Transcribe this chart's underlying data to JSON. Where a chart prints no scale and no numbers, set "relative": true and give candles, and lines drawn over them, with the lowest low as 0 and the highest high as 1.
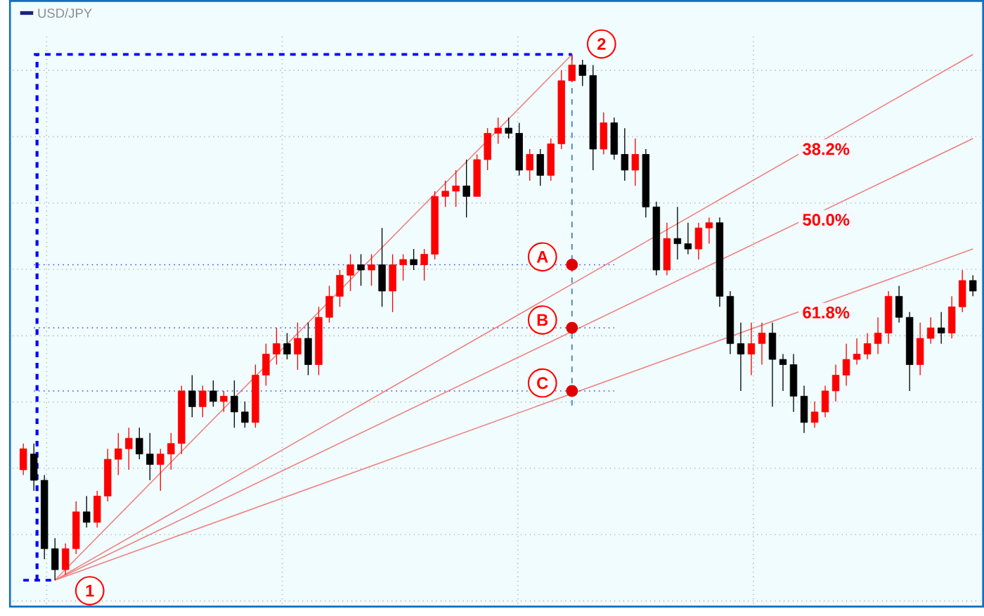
{
  "chart_data": {
    "type": "candlestick",
    "relative": true,
    "grid": true,
    "legend": "top left",
    "categories": [
      null,
      null,
      null,
      null,
      null,
      null,
      null,
      null,
      null,
      null,
      null,
      null,
      null,
      null,
      null,
      null,
      null,
      null,
      null,
      null,
      null,
      null,
      null,
      null,
      null,
      null,
      null,
      null,
      null,
      null,
      null,
      null,
      null,
      null,
      null,
      null,
      null,
      null,
      null,
      null,
      null,
      null,
      null,
      null,
      null,
      null,
      null,
      null,
      null,
      null,
      null,
      null,
      null,
      null,
      null,
      null,
      null,
      null,
      null,
      null,
      null,
      null,
      null,
      null,
      null,
      null,
      null,
      null,
      null,
      null,
      null,
      null,
      null,
      null,
      null,
      null,
      null,
      null,
      null,
      null,
      null,
      null,
      null,
      null,
      null,
      null,
      null,
      null,
      null,
      null,
      null
    ],
    "series": [
      {
        "name": "USD/JPY",
        "color": "#1a237e",
        "colors": [
          "#ff0000",
          "#000000",
          "#000000",
          "#000000",
          "#ff0000",
          "#ff0000",
          "#000000",
          "#ff0000",
          "#ff0000",
          "#ff0000",
          "#ff0000",
          "#000000",
          "#000000",
          "#ff0000",
          "#ff0000",
          "#ff0000",
          "#000000",
          "#ff0000",
          "#000000",
          "#ff0000",
          "#000000",
          "#000000",
          "#ff0000",
          "#ff0000",
          "#ff0000",
          "#000000",
          "#ff0000",
          "#000000",
          "#ff0000",
          "#ff0000",
          "#ff0000",
          "#ff0000",
          "#000000",
          "#ff0000",
          "#000000",
          "#ff0000",
          "#ff0000",
          "#000000",
          "#ff0000",
          "#ff0000",
          "#ff0000",
          "#ff0000",
          "#000000",
          "#ff0000",
          "#ff0000",
          "#ff0000",
          "#000000",
          "#000000",
          "#ff0000",
          "#000000",
          "#ff0000",
          "#ff0000",
          "#ff0000",
          "#000000",
          "#000000",
          "#ff0000",
          "#000000",
          "#000000",
          "#ff0000",
          "#000000",
          "#000000",
          "#ff0000",
          "#000000",
          "#000000",
          "#ff0000",
          "#ff0000",
          "#000000",
          "#000000",
          "#000000",
          "#ff0000",
          "#ff0000",
          "#000000",
          "#000000",
          "#000000",
          "#000000",
          "#ff0000",
          "#ff0000",
          "#ff0000",
          "#ff0000",
          "#ff0000",
          "#ff0000",
          "#ff0000",
          "#ff0000",
          "#000000",
          "#000000",
          "#ff0000",
          "#ff0000",
          "#000000",
          "#ff0000",
          "#ff0000",
          "#000000"
        ],
        "ohlc": [
          [
            0.21,
            0.26,
            0.2,
            0.25
          ],
          [
            0.24,
            0.26,
            0.17,
            0.19
          ],
          [
            0.19,
            0.2,
            0.04,
            0.06
          ],
          [
            0.06,
            0.08,
            0.0,
            0.02
          ],
          [
            0.02,
            0.07,
            0.01,
            0.06
          ],
          [
            0.06,
            0.15,
            0.05,
            0.13
          ],
          [
            0.13,
            0.16,
            0.1,
            0.11
          ],
          [
            0.11,
            0.17,
            0.1,
            0.16
          ],
          [
            0.16,
            0.25,
            0.15,
            0.23
          ],
          [
            0.23,
            0.28,
            0.2,
            0.25
          ],
          [
            0.25,
            0.29,
            0.21,
            0.27
          ],
          [
            0.27,
            0.29,
            0.23,
            0.24
          ],
          [
            0.24,
            0.28,
            0.19,
            0.22
          ],
          [
            0.22,
            0.25,
            0.17,
            0.24
          ],
          [
            0.24,
            0.28,
            0.21,
            0.26
          ],
          [
            0.26,
            0.37,
            0.24,
            0.36
          ],
          [
            0.36,
            0.39,
            0.31,
            0.33
          ],
          [
            0.33,
            0.37,
            0.31,
            0.36
          ],
          [
            0.36,
            0.38,
            0.33,
            0.34
          ],
          [
            0.34,
            0.36,
            0.32,
            0.35
          ],
          [
            0.35,
            0.38,
            0.29,
            0.32
          ],
          [
            0.32,
            0.34,
            0.29,
            0.3
          ],
          [
            0.3,
            0.41,
            0.29,
            0.39
          ],
          [
            0.39,
            0.45,
            0.37,
            0.43
          ],
          [
            0.43,
            0.48,
            0.41,
            0.45
          ],
          [
            0.45,
            0.47,
            0.42,
            0.43
          ],
          [
            0.43,
            0.49,
            0.4,
            0.46
          ],
          [
            0.46,
            0.49,
            0.39,
            0.41
          ],
          [
            0.41,
            0.52,
            0.39,
            0.5
          ],
          [
            0.5,
            0.56,
            0.49,
            0.54
          ],
          [
            0.54,
            0.59,
            0.52,
            0.58
          ],
          [
            0.58,
            0.62,
            0.55,
            0.6
          ],
          [
            0.6,
            0.62,
            0.56,
            0.59
          ],
          [
            0.59,
            0.62,
            0.56,
            0.6
          ],
          [
            0.6,
            0.67,
            0.52,
            0.55
          ],
          [
            0.55,
            0.62,
            0.51,
            0.6
          ],
          [
            0.6,
            0.62,
            0.57,
            0.61
          ],
          [
            0.61,
            0.63,
            0.59,
            0.6
          ],
          [
            0.6,
            0.63,
            0.57,
            0.62
          ],
          [
            0.62,
            0.74,
            0.61,
            0.73
          ],
          [
            0.73,
            0.76,
            0.71,
            0.74
          ],
          [
            0.74,
            0.78,
            0.71,
            0.75
          ],
          [
            0.75,
            0.8,
            0.69,
            0.73
          ],
          [
            0.73,
            0.81,
            0.73,
            0.8
          ],
          [
            0.8,
            0.86,
            0.78,
            0.85
          ],
          [
            0.85,
            0.88,
            0.83,
            0.86
          ],
          [
            0.86,
            0.88,
            0.84,
            0.85
          ],
          [
            0.85,
            0.87,
            0.77,
            0.78
          ],
          [
            0.78,
            0.82,
            0.76,
            0.81
          ],
          [
            0.81,
            0.82,
            0.75,
            0.77
          ],
          [
            0.77,
            0.84,
            0.76,
            0.83
          ],
          [
            0.83,
            0.97,
            0.82,
            0.95
          ],
          [
            0.95,
            1.0,
            0.95,
            0.98
          ],
          [
            0.98,
            0.99,
            0.94,
            0.96
          ],
          [
            0.96,
            0.98,
            0.78,
            0.82
          ],
          [
            0.82,
            0.89,
            0.81,
            0.87
          ],
          [
            0.87,
            0.88,
            0.8,
            0.81
          ],
          [
            0.81,
            0.86,
            0.76,
            0.78
          ],
          [
            0.78,
            0.84,
            0.75,
            0.81
          ],
          [
            0.81,
            0.82,
            0.69,
            0.71
          ],
          [
            0.71,
            0.72,
            0.58,
            0.59
          ],
          [
            0.59,
            0.68,
            0.58,
            0.65
          ],
          [
            0.65,
            0.71,
            0.61,
            0.64
          ],
          [
            0.64,
            0.68,
            0.62,
            0.63
          ],
          [
            0.63,
            0.68,
            0.61,
            0.67
          ],
          [
            0.67,
            0.69,
            0.64,
            0.68
          ],
          [
            0.68,
            0.69,
            0.52,
            0.54
          ],
          [
            0.54,
            0.55,
            0.43,
            0.45
          ],
          [
            0.45,
            0.49,
            0.36,
            0.43
          ],
          [
            0.43,
            0.49,
            0.39,
            0.45
          ],
          [
            0.45,
            0.49,
            0.41,
            0.47
          ],
          [
            0.47,
            0.49,
            0.33,
            0.42
          ],
          [
            0.42,
            0.43,
            0.36,
            0.41
          ],
          [
            0.41,
            0.43,
            0.32,
            0.35
          ],
          [
            0.35,
            0.37,
            0.28,
            0.3
          ],
          [
            0.3,
            0.34,
            0.29,
            0.32
          ],
          [
            0.32,
            0.37,
            0.31,
            0.36
          ],
          [
            0.36,
            0.41,
            0.34,
            0.39
          ],
          [
            0.39,
            0.45,
            0.37,
            0.42
          ],
          [
            0.42,
            0.46,
            0.41,
            0.43
          ],
          [
            0.43,
            0.47,
            0.42,
            0.45
          ],
          [
            0.45,
            0.5,
            0.43,
            0.47
          ],
          [
            0.47,
            0.55,
            0.45,
            0.54
          ],
          [
            0.54,
            0.56,
            0.49,
            0.5
          ],
          [
            0.5,
            0.51,
            0.36,
            0.41
          ],
          [
            0.41,
            0.49,
            0.39,
            0.46
          ],
          [
            0.46,
            0.5,
            0.45,
            0.48
          ],
          [
            0.48,
            0.51,
            0.45,
            0.47
          ],
          [
            0.47,
            0.54,
            0.46,
            0.52
          ],
          [
            0.52,
            0.59,
            0.51,
            0.57
          ],
          [
            0.57,
            0.58,
            0.54,
            0.55
          ]
        ]
      },
      {
        "type": "line",
        "color": "#f08080",
        "line_style": "solid",
        "values": [
          null,
          null,
          null,
          0,
          null,
          null,
          null,
          null,
          null,
          null,
          null,
          null,
          null,
          null,
          null,
          null,
          null,
          null,
          null,
          null,
          null,
          null,
          null,
          null,
          null,
          null,
          null,
          null,
          null,
          null,
          null,
          null,
          null,
          null,
          null,
          null,
          null,
          null,
          null,
          null,
          null,
          null,
          null,
          null,
          null,
          null,
          null,
          null,
          null,
          null,
          null,
          null,
          1,
          null,
          null,
          null,
          null,
          null,
          null,
          null,
          null,
          null,
          null,
          null,
          null,
          null,
          null,
          null,
          null,
          null,
          null,
          null,
          null,
          null,
          null,
          null,
          null,
          null,
          null,
          null,
          null,
          null,
          null,
          null,
          null,
          null,
          null,
          null,
          null,
          null,
          null
        ]
      },
      {
        "type": "line",
        "color": "#f08080",
        "line_style": "solid",
        "values": [
          null,
          null,
          null,
          0,
          null,
          null,
          null,
          null,
          null,
          null,
          null,
          null,
          null,
          null,
          null,
          null,
          null,
          null,
          null,
          null,
          null,
          null,
          null,
          null,
          null,
          null,
          null,
          null,
          null,
          null,
          null,
          null,
          null,
          null,
          null,
          null,
          null,
          null,
          null,
          null,
          null,
          null,
          null,
          null,
          null,
          null,
          null,
          null,
          null,
          null,
          null,
          null,
          null,
          null,
          null,
          null,
          null,
          null,
          null,
          null,
          null,
          null,
          null,
          null,
          null,
          null,
          null,
          null,
          null,
          null,
          null,
          null,
          null,
          null,
          null,
          null,
          null,
          null,
          null,
          null,
          null,
          null,
          null,
          null,
          null,
          null,
          null,
          null,
          null,
          null,
          1.0
        ]
      },
      {
        "type": "line",
        "color": "#f08080",
        "line_style": "solid",
        "values": [
          null,
          null,
          null,
          0,
          null,
          null,
          null,
          null,
          null,
          null,
          null,
          null,
          null,
          null,
          null,
          null,
          null,
          null,
          null,
          null,
          null,
          null,
          null,
          null,
          null,
          null,
          null,
          null,
          null,
          null,
          null,
          null,
          null,
          null,
          null,
          null,
          null,
          null,
          null,
          null,
          null,
          null,
          null,
          null,
          null,
          null,
          null,
          null,
          null,
          null,
          null,
          null,
          null,
          null,
          null,
          null,
          null,
          null,
          null,
          null,
          null,
          null,
          null,
          null,
          null,
          null,
          null,
          null,
          null,
          null,
          null,
          null,
          null,
          null,
          null,
          null,
          null,
          null,
          null,
          null,
          null,
          null,
          null,
          null,
          null,
          null,
          null,
          null,
          null,
          null,
          0.84
        ]
      },
      {
        "type": "line",
        "color": "#f08080",
        "line_style": "solid",
        "values": [
          null,
          null,
          null,
          0,
          null,
          null,
          null,
          null,
          null,
          null,
          null,
          null,
          null,
          null,
          null,
          null,
          null,
          null,
          null,
          null,
          null,
          null,
          null,
          null,
          null,
          null,
          null,
          null,
          null,
          null,
          null,
          null,
          null,
          null,
          null,
          null,
          null,
          null,
          null,
          null,
          null,
          null,
          null,
          null,
          null,
          null,
          null,
          null,
          null,
          null,
          null,
          null,
          null,
          null,
          null,
          null,
          null,
          null,
          null,
          null,
          null,
          null,
          null,
          null,
          null,
          null,
          null,
          null,
          null,
          null,
          null,
          null,
          null,
          null,
          null,
          null,
          null,
          null,
          null,
          null,
          null,
          null,
          null,
          null,
          null,
          null,
          null,
          null,
          null,
          null,
          0.63
        ]
      },
      {
        "type": "line",
        "color": "#0000ff",
        "line_style": "dashed",
        "values": [
          null,
          1,
          null,
          null,
          null,
          null,
          null,
          null,
          null,
          null,
          null,
          null,
          null,
          null,
          null,
          null,
          null,
          null,
          null,
          null,
          null,
          null,
          null,
          null,
          null,
          null,
          null,
          null,
          null,
          null,
          null,
          null,
          null,
          null,
          null,
          null,
          null,
          null,
          null,
          null,
          null,
          null,
          null,
          null,
          null,
          null,
          null,
          null,
          null,
          null,
          null,
          null,
          1,
          null,
          null,
          null,
          null,
          null,
          null,
          null,
          null,
          null,
          null,
          null,
          null,
          null,
          null,
          null,
          null,
          null,
          null,
          null,
          null,
          null,
          null,
          null,
          null,
          null,
          null,
          null,
          null,
          null,
          null,
          null,
          null,
          null,
          null,
          null,
          null,
          null,
          null
        ]
      },
      {
        "type": "line",
        "color": "#0000ff",
        "line_style": "dashed",
        "values": [
          0,
          null,
          null,
          0,
          null,
          null,
          null,
          null,
          null,
          null,
          null,
          null,
          null,
          null,
          null,
          null,
          null,
          null,
          null,
          null,
          null,
          null,
          null,
          null,
          null,
          null,
          null,
          null,
          null,
          null,
          null,
          null,
          null,
          null,
          null,
          null,
          null,
          null,
          null,
          null,
          null,
          null,
          null,
          null,
          null,
          null,
          null,
          null,
          null,
          null,
          null,
          null,
          null,
          null,
          null,
          null,
          null,
          null,
          null,
          null,
          null,
          null,
          null,
          null,
          null,
          null,
          null,
          null,
          null,
          null,
          null,
          null,
          null,
          null,
          null,
          null,
          null,
          null,
          null,
          null,
          null,
          null,
          null,
          null,
          null,
          null,
          null,
          null,
          null,
          null,
          null
        ]
      },
      {
        "type": "line",
        "color": "#4040ff",
        "line_style": "dotted",
        "values": [
          null,
          0.6,
          null,
          null,
          null,
          null,
          null,
          null,
          null,
          null,
          null,
          null,
          null,
          null,
          null,
          null,
          null,
          null,
          null,
          null,
          null,
          null,
          null,
          null,
          null,
          null,
          null,
          null,
          null,
          null,
          null,
          null,
          null,
          null,
          null,
          null,
          null,
          null,
          null,
          null,
          null,
          null,
          null,
          null,
          null,
          null,
          null,
          null,
          null,
          null,
          null,
          null,
          null,
          null,
          null,
          null,
          0.6,
          null,
          null,
          null,
          null,
          null,
          null,
          null,
          null,
          null,
          null,
          null,
          null,
          null,
          null,
          null,
          null,
          null,
          null,
          null,
          null,
          null,
          null,
          null,
          null,
          null,
          null,
          null,
          null,
          null,
          null,
          null,
          null,
          null,
          null
        ]
      },
      {
        "type": "line",
        "color": "#4040ff",
        "line_style": "dotted",
        "values": [
          null,
          0.48,
          null,
          null,
          null,
          null,
          null,
          null,
          null,
          null,
          null,
          null,
          null,
          null,
          null,
          null,
          null,
          null,
          null,
          null,
          null,
          null,
          null,
          null,
          null,
          null,
          null,
          null,
          null,
          null,
          null,
          null,
          null,
          null,
          null,
          null,
          null,
          null,
          null,
          null,
          null,
          null,
          null,
          null,
          null,
          null,
          null,
          null,
          null,
          null,
          null,
          null,
          null,
          null,
          null,
          null,
          0.48,
          null,
          null,
          null,
          null,
          null,
          null,
          null,
          null,
          null,
          null,
          null,
          null,
          null,
          null,
          null,
          null,
          null,
          null,
          null,
          null,
          null,
          null,
          null,
          null,
          null,
          null,
          null,
          null,
          null,
          null,
          null,
          null,
          null,
          null
        ]
      },
      {
        "type": "line",
        "color": "#4040ff",
        "line_style": "dotted",
        "values": [
          null,
          0.36,
          null,
          null,
          null,
          null,
          null,
          null,
          null,
          null,
          null,
          null,
          null,
          null,
          null,
          null,
          null,
          null,
          null,
          null,
          null,
          null,
          null,
          null,
          null,
          null,
          null,
          null,
          null,
          null,
          null,
          null,
          null,
          null,
          null,
          null,
          null,
          null,
          null,
          null,
          null,
          null,
          null,
          null,
          null,
          null,
          null,
          null,
          null,
          null,
          null,
          null,
          null,
          null,
          null,
          null,
          0.36,
          null,
          null,
          null,
          null,
          null,
          null,
          null,
          null,
          null,
          null,
          null,
          null,
          null,
          null,
          null,
          null,
          null,
          null,
          null,
          null,
          null,
          null,
          null,
          null,
          null,
          null,
          null,
          null,
          null,
          null,
          null,
          null,
          null,
          null
        ]
      },
      {
        "type": "scatter",
        "color": "#e00000",
        "marker": "circle",
        "values": [
          null,
          null,
          null,
          null,
          null,
          null,
          null,
          null,
          null,
          null,
          null,
          null,
          null,
          null,
          null,
          null,
          null,
          null,
          null,
          null,
          null,
          null,
          null,
          null,
          null,
          null,
          null,
          null,
          null,
          null,
          null,
          null,
          null,
          null,
          null,
          null,
          null,
          null,
          null,
          null,
          null,
          null,
          null,
          null,
          null,
          null,
          null,
          null,
          null,
          null,
          null,
          null,
          0.6,
          null,
          null,
          null,
          null,
          null,
          null,
          null,
          null,
          null,
          null,
          null,
          null,
          null,
          null,
          null,
          null,
          null,
          null,
          null,
          null,
          null,
          null,
          null,
          null,
          null,
          null,
          null,
          null,
          null,
          null,
          null,
          null,
          null,
          null,
          null,
          null,
          null,
          null
        ]
      },
      {
        "type": "scatter",
        "color": "#e00000",
        "marker": "circle",
        "values": [
          null,
          null,
          null,
          null,
          null,
          null,
          null,
          null,
          null,
          null,
          null,
          null,
          null,
          null,
          null,
          null,
          null,
          null,
          null,
          null,
          null,
          null,
          null,
          null,
          null,
          null,
          null,
          null,
          null,
          null,
          null,
          null,
          null,
          null,
          null,
          null,
          null,
          null,
          null,
          null,
          null,
          null,
          null,
          null,
          null,
          null,
          null,
          null,
          null,
          null,
          null,
          null,
          0.48,
          null,
          null,
          null,
          null,
          null,
          null,
          null,
          null,
          null,
          null,
          null,
          null,
          null,
          null,
          null,
          null,
          null,
          null,
          null,
          null,
          null,
          null,
          null,
          null,
          null,
          null,
          null,
          null,
          null,
          null,
          null,
          null,
          null,
          null,
          null,
          null,
          null,
          null
        ]
      },
      {
        "type": "scatter",
        "color": "#e00000",
        "marker": "circle",
        "values": [
          null,
          null,
          null,
          null,
          null,
          null,
          null,
          null,
          null,
          null,
          null,
          null,
          null,
          null,
          null,
          null,
          null,
          null,
          null,
          null,
          null,
          null,
          null,
          null,
          null,
          null,
          null,
          null,
          null,
          null,
          null,
          null,
          null,
          null,
          null,
          null,
          null,
          null,
          null,
          null,
          null,
          null,
          null,
          null,
          null,
          null,
          null,
          null,
          null,
          null,
          null,
          null,
          0.36,
          null,
          null,
          null,
          null,
          null,
          null,
          null,
          null,
          null,
          null,
          null,
          null,
          null,
          null,
          null,
          null,
          null,
          null,
          null,
          null,
          null,
          null,
          null,
          null,
          null,
          null,
          null,
          null,
          null,
          null,
          null,
          null,
          null,
          null,
          null,
          null,
          null,
          null
        ]
      }
    ],
    "annotations": [
      "1",
      "2",
      "A",
      "B",
      "C",
      "38.2%",
      "50.0%",
      "61.8%"
    ]
  }
}
